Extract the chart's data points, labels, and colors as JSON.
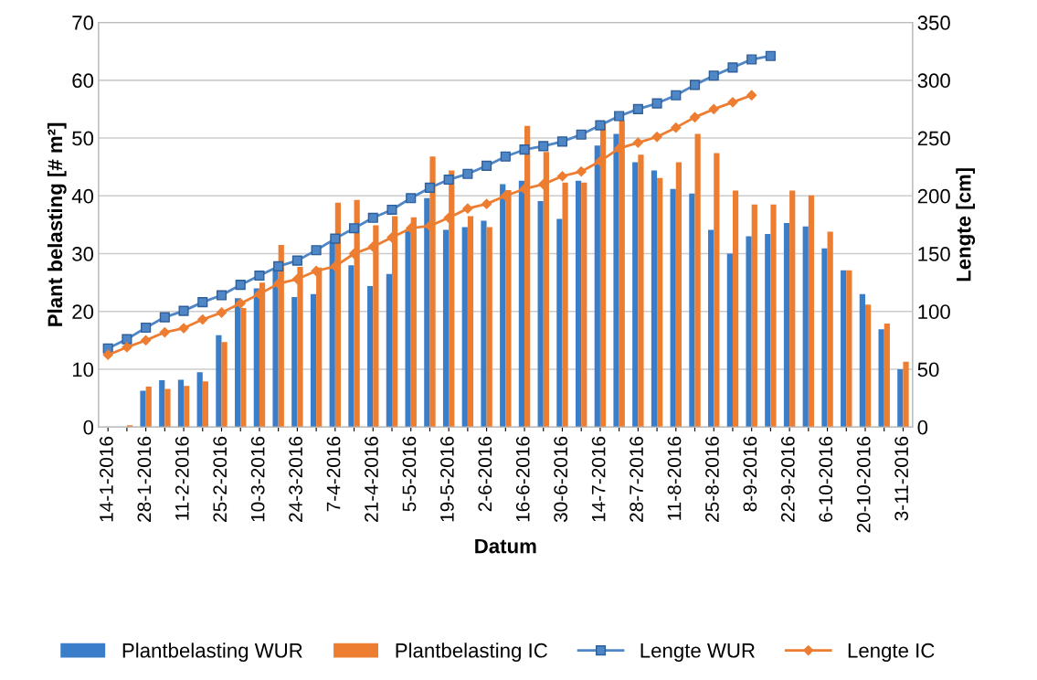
{
  "chart_data": {
    "type": "bar",
    "xlabel": "Datum",
    "ylabel": "Plant belasting [# m²]",
    "y2label": "Lengte [cm]",
    "categories": [
      "14-1-2016",
      null,
      "28-1-2016",
      null,
      "11-2-2016",
      null,
      "25-2-2016",
      null,
      "10-3-2016",
      null,
      "24-3-2016",
      null,
      "7-4-2016",
      null,
      "21-4-2016",
      null,
      "5-5-2016",
      null,
      "19-5-2016",
      null,
      "2-6-2016",
      null,
      "16-6-2016",
      null,
      "30-6-2016",
      null,
      "14-7-2016",
      null,
      "28-7-2016",
      null,
      "11-8-2016",
      null,
      "25-8-2016",
      null,
      "8-9-2016",
      null,
      "22-9-2016",
      null,
      "6-10-2016",
      null,
      "20-10-2016",
      null,
      "3-11-2016"
    ],
    "ylim": [
      0,
      70
    ],
    "yticks": [
      0,
      10,
      20,
      30,
      40,
      50,
      60,
      70
    ],
    "y2lim": [
      0,
      350
    ],
    "y2ticks": [
      0,
      50,
      100,
      150,
      200,
      250,
      300,
      350
    ],
    "grid": "y",
    "legend": "bottom",
    "series": [
      {
        "name": "Plantbelasting WUR",
        "color": "#3a7dc9",
        "values": [
          null,
          null,
          6.3,
          8.1,
          8.2,
          9.5,
          15.9,
          22.3,
          24,
          27.5,
          22.5,
          23.0,
          32,
          28.0,
          24.4,
          26.5,
          33.9,
          39.6,
          34.1,
          34.6,
          35.7,
          42.0,
          42.6,
          39.1,
          36.0,
          42.6,
          48.7,
          50.7,
          45.8,
          44.4,
          41.2,
          40.4,
          34.1,
          30.0,
          33.0,
          33.4,
          35.3,
          34.7,
          30.9,
          27.1,
          23.0,
          16.9,
          10.0
        ]
      },
      {
        "name": "Plantbelasting IC",
        "color": "#ed7d31",
        "values": [
          null,
          0.3,
          7.0,
          6.6,
          7.1,
          7.9,
          14.7,
          20.6,
          25,
          31.5,
          27.7,
          27.6,
          38.8,
          39.3,
          34.9,
          36.5,
          36.3,
          46.8,
          44.4,
          36.5,
          34.6,
          41.0,
          52.1,
          47.6,
          42.3,
          42.3,
          52.6,
          53.1,
          47.1,
          43.1,
          45.8,
          50.7,
          47.4,
          40.9,
          38.5,
          38.5,
          40.9,
          40.1,
          33.8,
          27.1,
          21.2,
          17.9,
          11.3
        ]
      },
      {
        "name": "Lengte WUR",
        "type": "line",
        "axis": "y2",
        "marker": "square",
        "color": "#4f86c6",
        "values": [
          68,
          76,
          86,
          95,
          100.5,
          108,
          114,
          123,
          131,
          139,
          144,
          153,
          163,
          172,
          181,
          188,
          198,
          207,
          214,
          219,
          226,
          234,
          240,
          243,
          247,
          253,
          261,
          269,
          275,
          280,
          287,
          296,
          304,
          311,
          318,
          321,
          null,
          null,
          null,
          null,
          null,
          null,
          null
        ]
      },
      {
        "name": "Lengte IC",
        "type": "line",
        "axis": "y2",
        "marker": "diamond",
        "color": "#ed7d31",
        "values": [
          62.5,
          69,
          75,
          82,
          85.5,
          93,
          99,
          107,
          115,
          124,
          128,
          135,
          139,
          150,
          156,
          164,
          172,
          174,
          181,
          189,
          193,
          200,
          206,
          210,
          217,
          221,
          230,
          241,
          246,
          251,
          259,
          268,
          275,
          281,
          287,
          null,
          null,
          null,
          null,
          null,
          null,
          null,
          null
        ]
      }
    ]
  }
}
